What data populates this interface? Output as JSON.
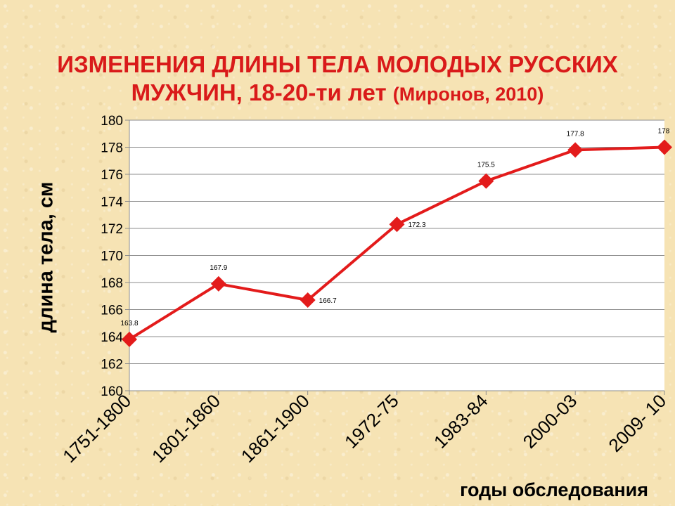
{
  "title": {
    "main_line1": "ИЗМЕНЕНИЯ ДЛИНЫ ТЕЛА МОЛОДЫХ РУССКИХ",
    "main_line2": "МУЖЧИН, 18-20-ти лет",
    "source": "(Миронов, 2010)"
  },
  "chart_data": {
    "type": "line",
    "categories": [
      "1751-1800",
      "1801-1860",
      "1861-1900",
      "1972-75",
      "1983-84",
      "2000-03",
      "2009- 10"
    ],
    "series": [
      {
        "values": [
          163.8,
          167.9,
          166.7,
          172.3,
          175.5,
          177.8,
          178
        ]
      }
    ],
    "data_labels": [
      "163.8",
      "167.9",
      "166.7",
      "172.3",
      "175.5",
      "177.8",
      "178"
    ],
    "ylabel": "длина тела, см",
    "xlabel": "годы обследования",
    "ylim": [
      160,
      180
    ],
    "yticks": [
      160,
      162,
      164,
      166,
      168,
      170,
      172,
      174,
      176,
      178,
      180
    ],
    "grid": true,
    "legend": "none",
    "colors": {
      "line": "#e31b1b",
      "title": "#d91a1a",
      "plot_bg": "#ffffff",
      "grid": "#8c8c8c"
    }
  }
}
